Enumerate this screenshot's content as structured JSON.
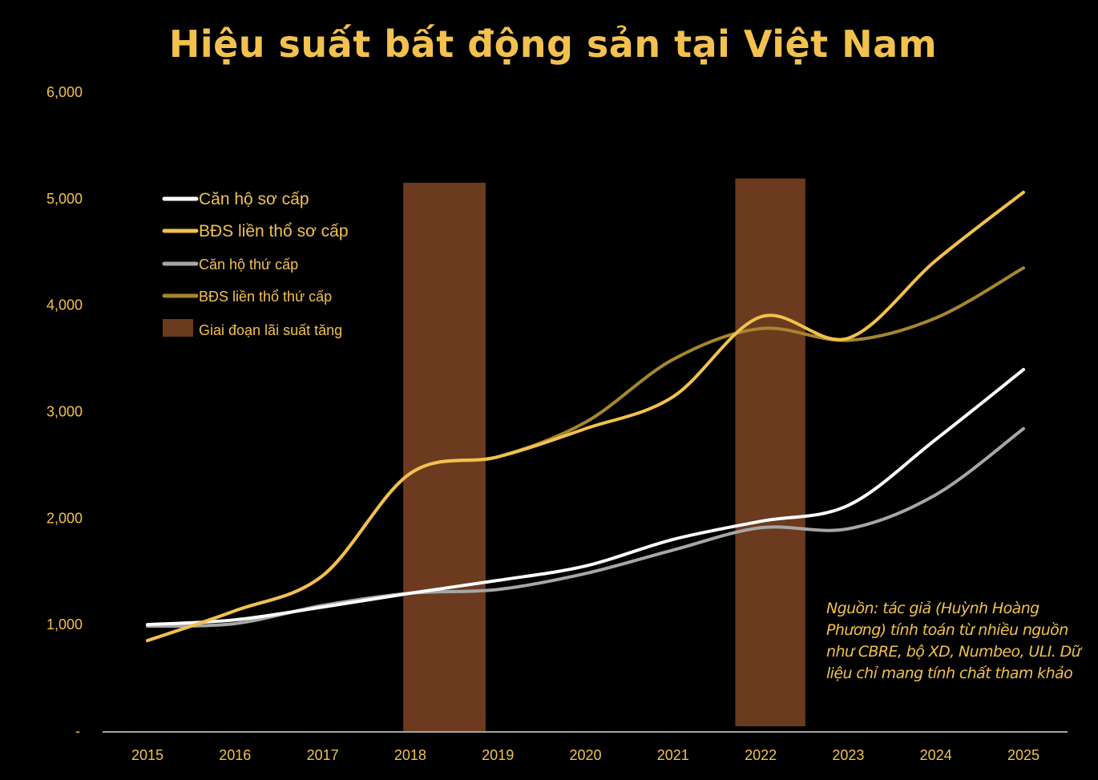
{
  "chart_data": {
    "type": "line",
    "title": "Hiệu suất bất động sản tại Việt Nam",
    "xlabel": "",
    "ylabel": "",
    "categories": [
      "2015",
      "2016",
      "2017",
      "2018",
      "2019",
      "2020",
      "2021",
      "2022",
      "2023",
      "2024",
      "2025"
    ],
    "ylim": [
      0,
      6000
    ],
    "yticks": [
      "-",
      "1,000",
      "2,000",
      "3,000",
      "4,000",
      "5,000",
      "6,000"
    ],
    "grid": false,
    "legend_position": "top-left",
    "smooth": true,
    "series": [
      {
        "name": "Căn hộ sơ cấp",
        "color": "#FFFFFF",
        "values": [
          1000,
          1045,
          1165,
          1295,
          1415,
          1550,
          1800,
          1970,
          2120,
          2740,
          3395
        ]
      },
      {
        "name": "BĐS liền  thổ sơ cấp",
        "color": "#F2C14E",
        "values": [
          850,
          1130,
          1460,
          2420,
          2575,
          2840,
          3140,
          3890,
          3690,
          4420,
          5060
        ]
      },
      {
        "name": "Căn hộ thứ cấp",
        "color": "#A6A6A6",
        "values": [
          985,
          1010,
          1180,
          1295,
          1330,
          1480,
          1700,
          1910,
          1900,
          2220,
          2840
        ]
      },
      {
        "name": "BĐS liền thổ thứ cấp",
        "color": "#A6862E",
        "values": [
          850,
          1130,
          1460,
          2420,
          2575,
          2900,
          3490,
          3780,
          3670,
          3880,
          4350
        ]
      }
    ],
    "shaded_periods": {
      "name": "Giai đoạn lãi suất tăng",
      "color": "#6B3A1F",
      "periods": [
        {
          "from": 2017.92,
          "to": 2018.86,
          "value": 5150
        },
        {
          "from": 2021.71,
          "to": 2022.51,
          "value": 5190
        }
      ]
    },
    "source_note": "Nguồn: tác giả (Huỳnh Hoàng Phương) tính toán từ nhiều nguồn như CBRE, bộ XD, Numbeo, ULI. Dữ liệu chỉ mang tính chất tham khảo"
  }
}
